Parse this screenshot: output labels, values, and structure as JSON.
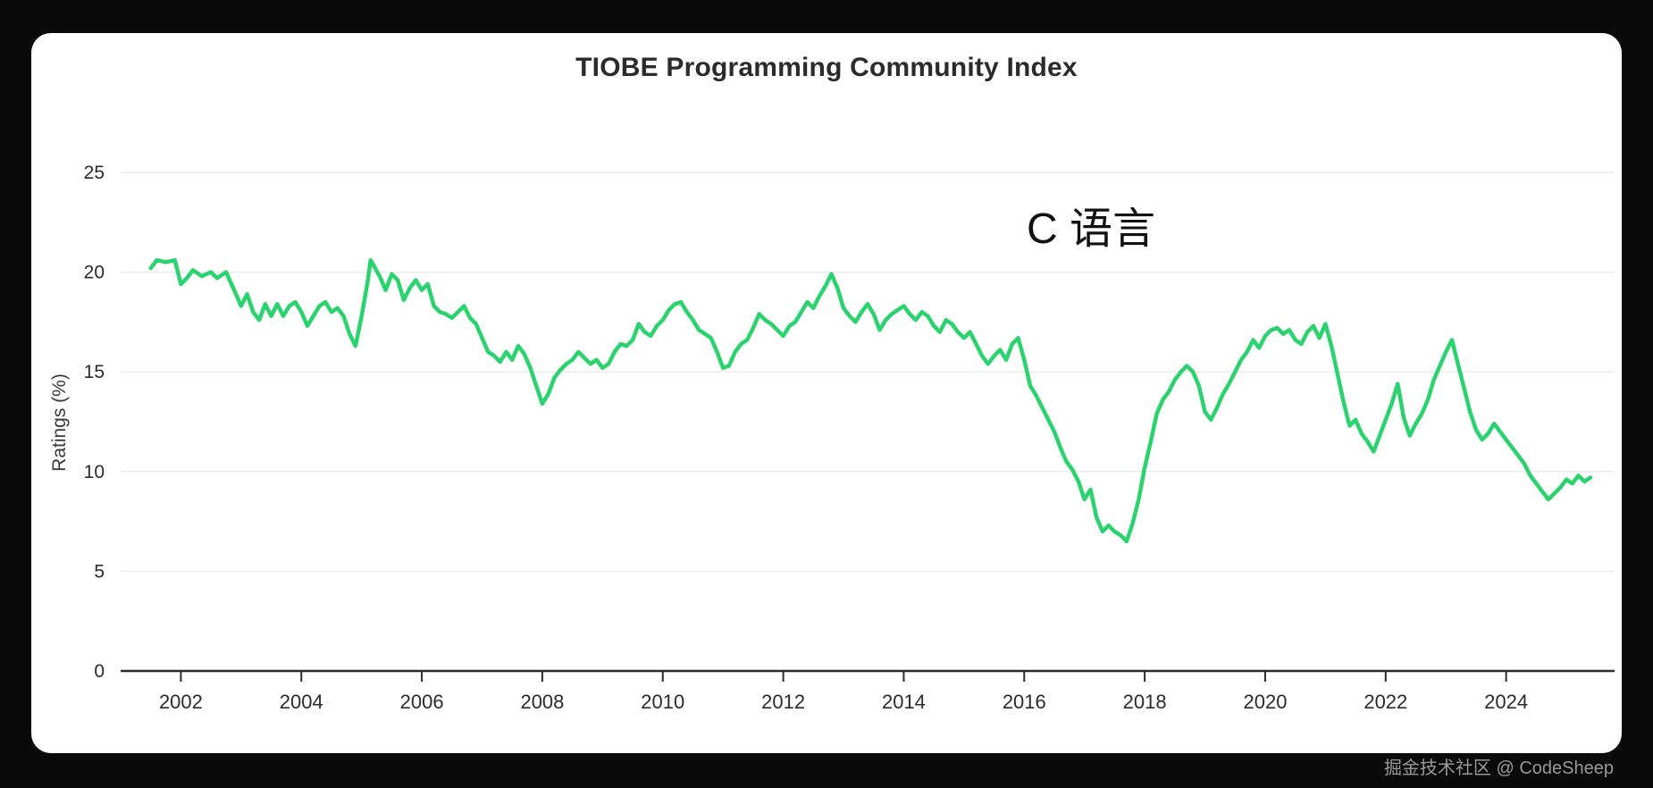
{
  "page": {
    "background_color": "#0a0a0a",
    "card_color": "#ffffff",
    "watermark": "掘金技术社区 @ CodeSheep"
  },
  "chart_data": {
    "type": "line",
    "title": "TIOBE Programming Community Index",
    "xlabel": "",
    "ylabel": "Ratings (%)",
    "annotation": "C 语言",
    "legend": "none",
    "grid": "horizontal",
    "xlim": [
      2001.0,
      2025.8
    ],
    "ylim": [
      0,
      25
    ],
    "x_ticks": [
      2002,
      2004,
      2006,
      2008,
      2010,
      2012,
      2014,
      2016,
      2018,
      2020,
      2022,
      2024
    ],
    "y_ticks": [
      0,
      5,
      10,
      15,
      20,
      25
    ],
    "axis_color": "#2b2b2b",
    "grid_color": "#ececec",
    "series": [
      {
        "name": "C",
        "color": "#2bd36e",
        "points": [
          [
            2001.5,
            20.2
          ],
          [
            2001.6,
            20.6
          ],
          [
            2001.75,
            20.5
          ],
          [
            2001.9,
            20.6
          ],
          [
            2002.0,
            19.4
          ],
          [
            2002.1,
            19.7
          ],
          [
            2002.2,
            20.1
          ],
          [
            2002.35,
            19.8
          ],
          [
            2002.5,
            20.0
          ],
          [
            2002.6,
            19.7
          ],
          [
            2002.75,
            20.0
          ],
          [
            2002.9,
            19.0
          ],
          [
            2003.0,
            18.3
          ],
          [
            2003.1,
            18.9
          ],
          [
            2003.2,
            18.0
          ],
          [
            2003.3,
            17.6
          ],
          [
            2003.4,
            18.4
          ],
          [
            2003.5,
            17.8
          ],
          [
            2003.6,
            18.4
          ],
          [
            2003.7,
            17.8
          ],
          [
            2003.8,
            18.3
          ],
          [
            2003.9,
            18.5
          ],
          [
            2004.0,
            18.0
          ],
          [
            2004.1,
            17.3
          ],
          [
            2004.2,
            17.8
          ],
          [
            2004.3,
            18.3
          ],
          [
            2004.4,
            18.5
          ],
          [
            2004.5,
            18.0
          ],
          [
            2004.6,
            18.2
          ],
          [
            2004.7,
            17.8
          ],
          [
            2004.8,
            16.9
          ],
          [
            2004.9,
            16.3
          ],
          [
            2005.0,
            17.8
          ],
          [
            2005.1,
            19.5
          ],
          [
            2005.15,
            20.6
          ],
          [
            2005.3,
            19.8
          ],
          [
            2005.4,
            19.1
          ],
          [
            2005.5,
            19.9
          ],
          [
            2005.6,
            19.6
          ],
          [
            2005.7,
            18.6
          ],
          [
            2005.8,
            19.2
          ],
          [
            2005.9,
            19.6
          ],
          [
            2006.0,
            19.1
          ],
          [
            2006.1,
            19.4
          ],
          [
            2006.2,
            18.3
          ],
          [
            2006.3,
            18.0
          ],
          [
            2006.4,
            17.9
          ],
          [
            2006.5,
            17.7
          ],
          [
            2006.6,
            18.0
          ],
          [
            2006.7,
            18.3
          ],
          [
            2006.8,
            17.7
          ],
          [
            2006.9,
            17.4
          ],
          [
            2007.0,
            16.7
          ],
          [
            2007.1,
            16.0
          ],
          [
            2007.2,
            15.8
          ],
          [
            2007.3,
            15.5
          ],
          [
            2007.4,
            16.0
          ],
          [
            2007.5,
            15.6
          ],
          [
            2007.6,
            16.3
          ],
          [
            2007.7,
            15.9
          ],
          [
            2007.8,
            15.2
          ],
          [
            2007.9,
            14.3
          ],
          [
            2008.0,
            13.4
          ],
          [
            2008.1,
            13.9
          ],
          [
            2008.2,
            14.7
          ],
          [
            2008.3,
            15.1
          ],
          [
            2008.4,
            15.4
          ],
          [
            2008.5,
            15.6
          ],
          [
            2008.6,
            16.0
          ],
          [
            2008.7,
            15.7
          ],
          [
            2008.8,
            15.4
          ],
          [
            2008.9,
            15.6
          ],
          [
            2009.0,
            15.2
          ],
          [
            2009.1,
            15.4
          ],
          [
            2009.2,
            16.0
          ],
          [
            2009.3,
            16.4
          ],
          [
            2009.4,
            16.3
          ],
          [
            2009.5,
            16.6
          ],
          [
            2009.6,
            17.4
          ],
          [
            2009.7,
            17.0
          ],
          [
            2009.8,
            16.8
          ],
          [
            2009.9,
            17.3
          ],
          [
            2010.0,
            17.6
          ],
          [
            2010.1,
            18.1
          ],
          [
            2010.2,
            18.4
          ],
          [
            2010.3,
            18.5
          ],
          [
            2010.4,
            18.0
          ],
          [
            2010.5,
            17.6
          ],
          [
            2010.6,
            17.1
          ],
          [
            2010.7,
            16.9
          ],
          [
            2010.8,
            16.7
          ],
          [
            2010.9,
            16.0
          ],
          [
            2011.0,
            15.2
          ],
          [
            2011.1,
            15.3
          ],
          [
            2011.2,
            16.0
          ],
          [
            2011.3,
            16.4
          ],
          [
            2011.4,
            16.6
          ],
          [
            2011.5,
            17.2
          ],
          [
            2011.6,
            17.9
          ],
          [
            2011.7,
            17.6
          ],
          [
            2011.8,
            17.4
          ],
          [
            2011.9,
            17.1
          ],
          [
            2012.0,
            16.8
          ],
          [
            2012.1,
            17.3
          ],
          [
            2012.2,
            17.5
          ],
          [
            2012.3,
            18.0
          ],
          [
            2012.4,
            18.5
          ],
          [
            2012.5,
            18.2
          ],
          [
            2012.6,
            18.8
          ],
          [
            2012.7,
            19.3
          ],
          [
            2012.8,
            19.9
          ],
          [
            2012.9,
            19.2
          ],
          [
            2013.0,
            18.2
          ],
          [
            2013.1,
            17.8
          ],
          [
            2013.2,
            17.5
          ],
          [
            2013.3,
            18.0
          ],
          [
            2013.4,
            18.4
          ],
          [
            2013.5,
            17.9
          ],
          [
            2013.6,
            17.1
          ],
          [
            2013.7,
            17.6
          ],
          [
            2013.8,
            17.9
          ],
          [
            2013.9,
            18.1
          ],
          [
            2014.0,
            18.3
          ],
          [
            2014.1,
            17.9
          ],
          [
            2014.2,
            17.6
          ],
          [
            2014.3,
            18.0
          ],
          [
            2014.4,
            17.8
          ],
          [
            2014.5,
            17.3
          ],
          [
            2014.6,
            17.0
          ],
          [
            2014.7,
            17.6
          ],
          [
            2014.8,
            17.4
          ],
          [
            2014.9,
            17.0
          ],
          [
            2015.0,
            16.7
          ],
          [
            2015.1,
            17.0
          ],
          [
            2015.2,
            16.4
          ],
          [
            2015.3,
            15.8
          ],
          [
            2015.4,
            15.4
          ],
          [
            2015.5,
            15.8
          ],
          [
            2015.6,
            16.1
          ],
          [
            2015.7,
            15.6
          ],
          [
            2015.8,
            16.4
          ],
          [
            2015.9,
            16.7
          ],
          [
            2016.0,
            15.6
          ],
          [
            2016.1,
            14.3
          ],
          [
            2016.2,
            13.8
          ],
          [
            2016.3,
            13.2
          ],
          [
            2016.4,
            12.6
          ],
          [
            2016.5,
            12.0
          ],
          [
            2016.6,
            11.2
          ],
          [
            2016.7,
            10.5
          ],
          [
            2016.8,
            10.1
          ],
          [
            2016.9,
            9.5
          ],
          [
            2017.0,
            8.6
          ],
          [
            2017.1,
            9.1
          ],
          [
            2017.2,
            7.7
          ],
          [
            2017.3,
            7.0
          ],
          [
            2017.4,
            7.3
          ],
          [
            2017.5,
            7.0
          ],
          [
            2017.6,
            6.8
          ],
          [
            2017.7,
            6.5
          ],
          [
            2017.8,
            7.4
          ],
          [
            2017.9,
            8.6
          ],
          [
            2018.0,
            10.2
          ],
          [
            2018.1,
            11.5
          ],
          [
            2018.2,
            12.9
          ],
          [
            2018.3,
            13.6
          ],
          [
            2018.4,
            14.0
          ],
          [
            2018.5,
            14.6
          ],
          [
            2018.6,
            15.0
          ],
          [
            2018.7,
            15.3
          ],
          [
            2018.8,
            15.0
          ],
          [
            2018.9,
            14.3
          ],
          [
            2019.0,
            13.0
          ],
          [
            2019.1,
            12.6
          ],
          [
            2019.2,
            13.2
          ],
          [
            2019.3,
            13.9
          ],
          [
            2019.4,
            14.4
          ],
          [
            2019.5,
            15.0
          ],
          [
            2019.6,
            15.6
          ],
          [
            2019.7,
            16.0
          ],
          [
            2019.8,
            16.6
          ],
          [
            2019.9,
            16.2
          ],
          [
            2020.0,
            16.8
          ],
          [
            2020.1,
            17.1
          ],
          [
            2020.2,
            17.2
          ],
          [
            2020.3,
            16.9
          ],
          [
            2020.4,
            17.1
          ],
          [
            2020.5,
            16.6
          ],
          [
            2020.6,
            16.4
          ],
          [
            2020.7,
            17.0
          ],
          [
            2020.8,
            17.3
          ],
          [
            2020.9,
            16.7
          ],
          [
            2021.0,
            17.4
          ],
          [
            2021.1,
            16.3
          ],
          [
            2021.2,
            14.9
          ],
          [
            2021.3,
            13.5
          ],
          [
            2021.4,
            12.3
          ],
          [
            2021.5,
            12.6
          ],
          [
            2021.6,
            11.9
          ],
          [
            2021.7,
            11.5
          ],
          [
            2021.8,
            11.0
          ],
          [
            2021.9,
            11.8
          ],
          [
            2022.0,
            12.6
          ],
          [
            2022.1,
            13.4
          ],
          [
            2022.2,
            14.4
          ],
          [
            2022.3,
            12.7
          ],
          [
            2022.4,
            11.8
          ],
          [
            2022.5,
            12.4
          ],
          [
            2022.6,
            12.9
          ],
          [
            2022.7,
            13.6
          ],
          [
            2022.8,
            14.6
          ],
          [
            2022.9,
            15.3
          ],
          [
            2023.0,
            16.0
          ],
          [
            2023.1,
            16.6
          ],
          [
            2023.2,
            15.4
          ],
          [
            2023.3,
            14.2
          ],
          [
            2023.4,
            13.0
          ],
          [
            2023.5,
            12.1
          ],
          [
            2023.6,
            11.6
          ],
          [
            2023.7,
            11.9
          ],
          [
            2023.8,
            12.4
          ],
          [
            2023.9,
            12.0
          ],
          [
            2024.0,
            11.6
          ],
          [
            2024.1,
            11.2
          ],
          [
            2024.2,
            10.8
          ],
          [
            2024.3,
            10.4
          ],
          [
            2024.4,
            9.8
          ],
          [
            2024.5,
            9.4
          ],
          [
            2024.6,
            9.0
          ],
          [
            2024.7,
            8.6
          ],
          [
            2024.8,
            8.9
          ],
          [
            2024.9,
            9.2
          ],
          [
            2025.0,
            9.6
          ],
          [
            2025.1,
            9.4
          ],
          [
            2025.2,
            9.8
          ],
          [
            2025.3,
            9.5
          ],
          [
            2025.4,
            9.7
          ]
        ]
      }
    ]
  }
}
